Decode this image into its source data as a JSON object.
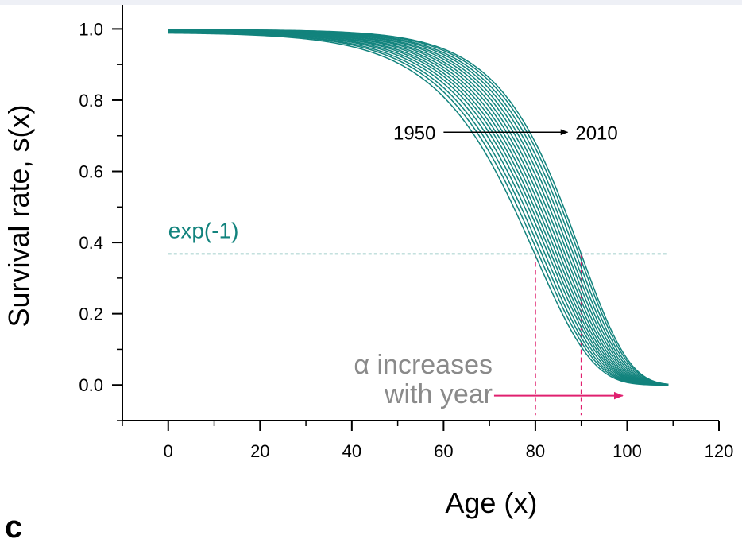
{
  "chart_data": {
    "type": "line",
    "title": "",
    "xlabel": "Age (x)",
    "ylabel": "Survival rate, s(x)",
    "xlim": [
      -10,
      120
    ],
    "ylim": [
      -0.1,
      1.05
    ],
    "xticks": [
      0,
      20,
      40,
      60,
      80,
      100,
      120
    ],
    "xtick_labels": [
      "0",
      "20",
      "40",
      "60",
      "80",
      "100",
      "120"
    ],
    "yticks": [
      0.0,
      0.2,
      0.4,
      0.6,
      0.8,
      1.0
    ],
    "ytick_labels": [
      "0.0",
      "0.2",
      "0.4",
      "0.6",
      "0.8",
      "1.0"
    ],
    "grid": false,
    "series_color": "#12837d",
    "x_range": [
      0,
      109
    ],
    "series": [
      {
        "start": 0.99,
        "age_at_exp_minus_1": 80.0,
        "alpha": 0.08
      },
      {
        "start": 0.991,
        "age_at_exp_minus_1": 80.8,
        "alpha": 0.081
      },
      {
        "start": 0.991,
        "age_at_exp_minus_1": 81.5,
        "alpha": 0.082
      },
      {
        "start": 0.992,
        "age_at_exp_minus_1": 82.2,
        "alpha": 0.083
      },
      {
        "start": 0.992,
        "age_at_exp_minus_1": 82.9,
        "alpha": 0.084
      },
      {
        "start": 0.993,
        "age_at_exp_minus_1": 83.5,
        "alpha": 0.085
      },
      {
        "start": 0.993,
        "age_at_exp_minus_1": 84.1,
        "alpha": 0.086
      },
      {
        "start": 0.994,
        "age_at_exp_minus_1": 84.7,
        "alpha": 0.087
      },
      {
        "start": 0.994,
        "age_at_exp_minus_1": 85.3,
        "alpha": 0.088
      },
      {
        "start": 0.995,
        "age_at_exp_minus_1": 85.9,
        "alpha": 0.089
      },
      {
        "start": 0.995,
        "age_at_exp_minus_1": 86.5,
        "alpha": 0.09
      },
      {
        "start": 0.996,
        "age_at_exp_minus_1": 87.1,
        "alpha": 0.091
      },
      {
        "start": 0.996,
        "age_at_exp_minus_1": 87.7,
        "alpha": 0.092
      },
      {
        "start": 0.997,
        "age_at_exp_minus_1": 88.3,
        "alpha": 0.093
      },
      {
        "start": 0.997,
        "age_at_exp_minus_1": 88.9,
        "alpha": 0.094
      },
      {
        "start": 0.998,
        "age_at_exp_minus_1": 89.5,
        "alpha": 0.095
      },
      {
        "start": 0.998,
        "age_at_exp_minus_1": 90.0,
        "alpha": 0.096
      }
    ],
    "reference_line": {
      "label": "exp(-1)",
      "y": 0.3679,
      "x_range": [
        0,
        109
      ],
      "color": "#12837d"
    },
    "vertical_markers": [
      {
        "x": 80,
        "y_top": 0.3679,
        "y_bottom": -0.085,
        "color": "#e0206f"
      },
      {
        "x": 90,
        "y_top": 0.3679,
        "y_bottom": -0.085,
        "color": "#e0206f"
      }
    ],
    "year_annotation": {
      "from_label": "1950",
      "to_label": "2010",
      "y": 0.71,
      "arrow_x_range": [
        60,
        87
      ]
    },
    "alpha_annotation": {
      "line1": "α increases",
      "line2": "with year",
      "arrow_y": -0.03,
      "arrow_x_range": [
        71,
        99
      ],
      "color": "#e0206f"
    },
    "panel_label": "c"
  }
}
